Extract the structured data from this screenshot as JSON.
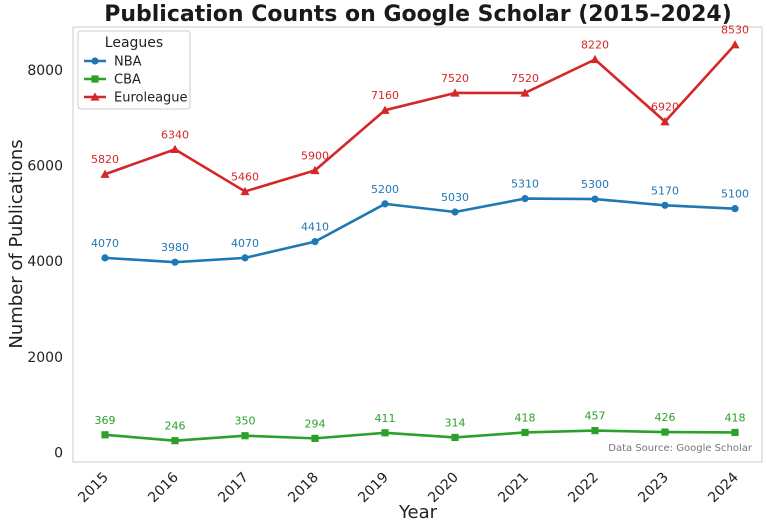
{
  "chart_data": {
    "type": "line",
    "title": "Publication Counts on Google Scholar (2015–2024)",
    "xlabel": "Year",
    "ylabel": "Number of Publications",
    "x": [
      2015,
      2016,
      2017,
      2018,
      2019,
      2020,
      2021,
      2022,
      2023,
      2024
    ],
    "x_tick_labels": [
      "2015",
      "2016",
      "2017",
      "2018",
      "2019",
      "2020",
      "2021",
      "2022",
      "2023",
      "2024"
    ],
    "y_ticks": [
      0,
      2000,
      4000,
      6000,
      8000
    ],
    "y_tick_labels": [
      "0",
      "2000",
      "4000",
      "6000",
      "8000"
    ],
    "ylim": [
      -200,
      8900
    ],
    "grid": false,
    "legend_title": "Leagues",
    "legend_position": "top-left",
    "annotation": "Data Source: Google Scholar",
    "series": [
      {
        "name": "NBA",
        "color": "#1f77b4",
        "marker": "circle",
        "values": [
          4070,
          3980,
          4070,
          4410,
          5200,
          5030,
          5310,
          5300,
          5170,
          5100
        ],
        "labels": [
          "4070",
          "3980",
          "4070",
          "4410",
          "5200",
          "5030",
          "5310",
          "5300",
          "5170",
          "5100"
        ]
      },
      {
        "name": "CBA",
        "color": "#2ca02c",
        "marker": "square",
        "values": [
          369,
          246,
          350,
          294,
          411,
          314,
          418,
          457,
          426,
          418
        ],
        "labels": [
          "369",
          "246",
          "350",
          "294",
          "411",
          "314",
          "418",
          "457",
          "426",
          "418"
        ]
      },
      {
        "name": "Euroleague",
        "color": "#d62728",
        "marker": "triangle",
        "values": [
          5820,
          6340,
          5460,
          5900,
          7160,
          7520,
          7520,
          8220,
          6920,
          8530
        ],
        "labels": [
          "5820",
          "6340",
          "5460",
          "5900",
          "7160",
          "7520",
          "7520",
          "8220",
          "6920",
          "8530"
        ]
      }
    ]
  }
}
